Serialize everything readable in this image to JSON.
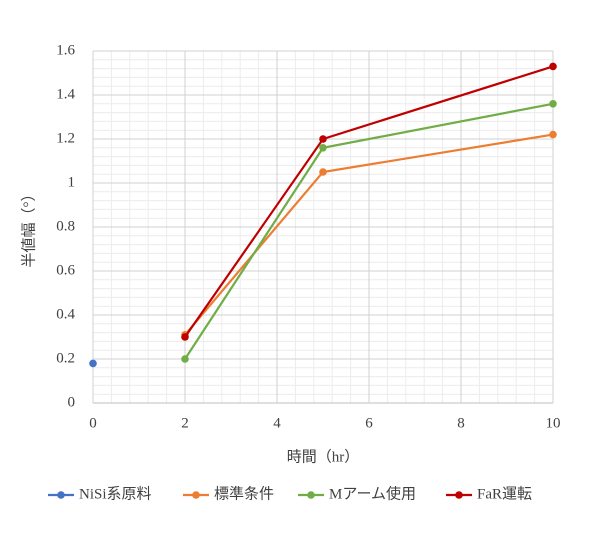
{
  "chart_data": {
    "type": "line",
    "x_label": "時間（hr）",
    "y_label": "半値幅（°）",
    "xlim": [
      0,
      10
    ],
    "xticks": [
      0,
      2,
      4,
      6,
      8,
      10
    ],
    "ylim": [
      0,
      1.6
    ],
    "yticks": [
      0,
      0.2,
      0.4,
      0.6,
      0.8,
      1,
      1.2,
      1.4,
      1.6
    ],
    "grid": true,
    "minor_grid": true,
    "legend": "bottom",
    "series": [
      {
        "name": "NiSi系原料",
        "color": "#4472c4",
        "x": [
          0
        ],
        "values": [
          0.18
        ]
      },
      {
        "name": "標準条件",
        "color": "#ed7d31",
        "x": [
          2,
          5,
          10
        ],
        "values": [
          0.31,
          1.05,
          1.22
        ]
      },
      {
        "name": "Mアーム使用",
        "color": "#70ad47",
        "x": [
          2,
          5,
          10
        ],
        "values": [
          0.2,
          1.16,
          1.36
        ]
      },
      {
        "name": "FaR運転",
        "color": "#c00000",
        "x": [
          2,
          5,
          10
        ],
        "values": [
          0.3,
          1.2,
          1.53
        ]
      }
    ]
  }
}
